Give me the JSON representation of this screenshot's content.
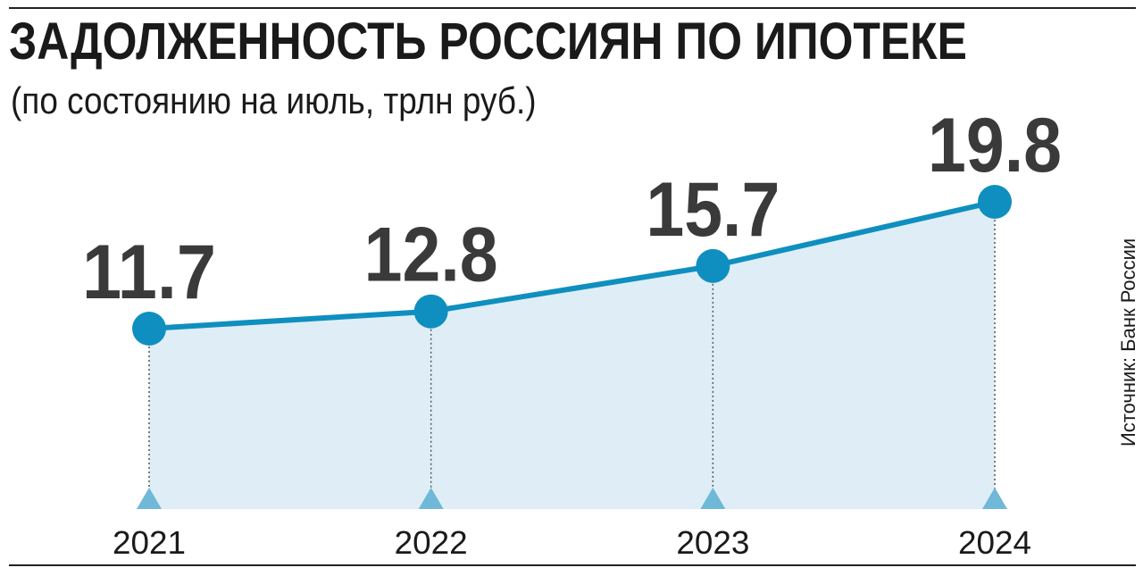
{
  "header": {
    "title": "ЗАДОЛЖЕННОСТЬ РОССИЯН ПО ИПОТЕКЕ",
    "subtitle": "(по состоянию на июль, трлн руб.)"
  },
  "footer": {
    "source": "Источник: Банк России"
  },
  "colors": {
    "line": "#0f8fbf",
    "area": "#dfeef6",
    "marker": "#0f8fbf",
    "triangle": "#6fb8d8",
    "guide": "#555555"
  },
  "chart_data": {
    "type": "area",
    "categories": [
      "2021",
      "2022",
      "2023",
      "2024"
    ],
    "values": [
      11.7,
      12.8,
      15.7,
      19.8
    ],
    "value_labels": [
      "11.7",
      "12.8",
      "15.7",
      "19.8"
    ],
    "title": "ЗАДОЛЖЕННОСТЬ РОССИЯН ПО ИПОТЕКЕ",
    "subtitle": "(по состоянию на июль, трлн руб.)",
    "grid": false,
    "legend": "none"
  }
}
